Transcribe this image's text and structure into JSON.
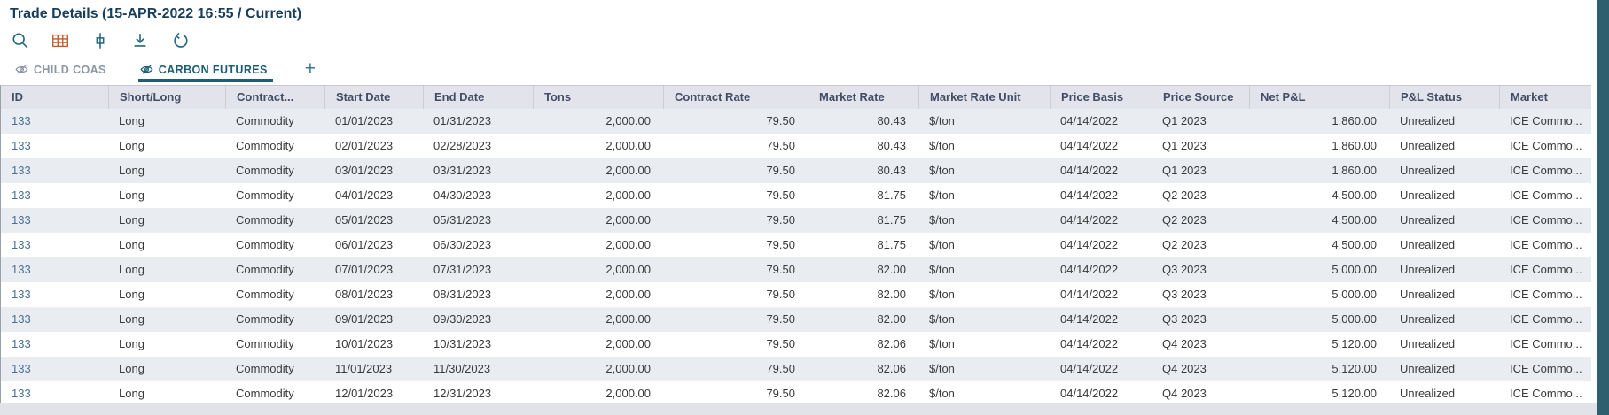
{
  "page": {
    "title": "Trade Details (15-APR-2022 16:55 / Current)"
  },
  "toolbar": {
    "buttons": [
      {
        "icon": "search-icon",
        "action": "search"
      },
      {
        "icon": "table-grid-icon",
        "action": "grid-view"
      },
      {
        "icon": "fit-columns-icon",
        "action": "fit-columns"
      },
      {
        "icon": "download-icon",
        "action": "download"
      },
      {
        "icon": "undo-icon",
        "action": "undo"
      }
    ]
  },
  "tabs": {
    "items": [
      {
        "label": "CHILD COAS",
        "icon": "eye-slash-icon",
        "active": false
      },
      {
        "label": "CARBON FUTURES",
        "icon": "eye-slash-icon",
        "active": true
      }
    ],
    "add_button": "+"
  },
  "table": {
    "columns": [
      "ID",
      "Short/Long",
      "Contract...",
      "Start Date",
      "End Date",
      "Tons",
      "Contract Rate",
      "Market Rate",
      "Market Rate Unit",
      "Price Basis",
      "Price Source",
      "Net P&L",
      "P&L Status",
      "Market"
    ],
    "rows": [
      [
        "133",
        "Long",
        "Commodity",
        "01/01/2023",
        "01/31/2023",
        "2,000.00",
        "79.50",
        "80.43",
        "$/ton",
        "04/14/2022",
        "Q1 2023",
        "1,860.00",
        "Unrealized",
        "ICE Commo..."
      ],
      [
        "133",
        "Long",
        "Commodity",
        "02/01/2023",
        "02/28/2023",
        "2,000.00",
        "79.50",
        "80.43",
        "$/ton",
        "04/14/2022",
        "Q1 2023",
        "1,860.00",
        "Unrealized",
        "ICE Commo..."
      ],
      [
        "133",
        "Long",
        "Commodity",
        "03/01/2023",
        "03/31/2023",
        "2,000.00",
        "79.50",
        "80.43",
        "$/ton",
        "04/14/2022",
        "Q1 2023",
        "1,860.00",
        "Unrealized",
        "ICE Commo..."
      ],
      [
        "133",
        "Long",
        "Commodity",
        "04/01/2023",
        "04/30/2023",
        "2,000.00",
        "79.50",
        "81.75",
        "$/ton",
        "04/14/2022",
        "Q2 2023",
        "4,500.00",
        "Unrealized",
        "ICE Commo..."
      ],
      [
        "133",
        "Long",
        "Commodity",
        "05/01/2023",
        "05/31/2023",
        "2,000.00",
        "79.50",
        "81.75",
        "$/ton",
        "04/14/2022",
        "Q2 2023",
        "4,500.00",
        "Unrealized",
        "ICE Commo..."
      ],
      [
        "133",
        "Long",
        "Commodity",
        "06/01/2023",
        "06/30/2023",
        "2,000.00",
        "79.50",
        "81.75",
        "$/ton",
        "04/14/2022",
        "Q2 2023",
        "4,500.00",
        "Unrealized",
        "ICE Commo..."
      ],
      [
        "133",
        "Long",
        "Commodity",
        "07/01/2023",
        "07/31/2023",
        "2,000.00",
        "79.50",
        "82.00",
        "$/ton",
        "04/14/2022",
        "Q3 2023",
        "5,000.00",
        "Unrealized",
        "ICE Commo..."
      ],
      [
        "133",
        "Long",
        "Commodity",
        "08/01/2023",
        "08/31/2023",
        "2,000.00",
        "79.50",
        "82.00",
        "$/ton",
        "04/14/2022",
        "Q3 2023",
        "5,000.00",
        "Unrealized",
        "ICE Commo..."
      ],
      [
        "133",
        "Long",
        "Commodity",
        "09/01/2023",
        "09/30/2023",
        "2,000.00",
        "79.50",
        "82.00",
        "$/ton",
        "04/14/2022",
        "Q3 2023",
        "5,000.00",
        "Unrealized",
        "ICE Commo..."
      ],
      [
        "133",
        "Long",
        "Commodity",
        "10/01/2023",
        "10/31/2023",
        "2,000.00",
        "79.50",
        "82.06",
        "$/ton",
        "04/14/2022",
        "Q4 2023",
        "5,120.00",
        "Unrealized",
        "ICE Commo..."
      ],
      [
        "133",
        "Long",
        "Commodity",
        "11/01/2023",
        "11/30/2023",
        "2,000.00",
        "79.50",
        "82.06",
        "$/ton",
        "04/14/2022",
        "Q4 2023",
        "5,120.00",
        "Unrealized",
        "ICE Commo..."
      ],
      [
        "133",
        "Long",
        "Commodity",
        "12/01/2023",
        "12/31/2023",
        "2,000.00",
        "79.50",
        "82.06",
        "$/ton",
        "04/14/2022",
        "Q4 2023",
        "5,120.00",
        "Unrealized",
        "ICE Commo..."
      ]
    ]
  },
  "colors": {
    "title_text": "#173e5c",
    "accent_teal": "#27697c",
    "grid_icon_orange": "#bf5c2d",
    "active_tab": "#1c5e74",
    "inactive_tab": "#8b97a4",
    "header_bg": "#e3e3eb",
    "header_text": "#414e66",
    "row_shaded_bg": "#e9edf2",
    "id_link_text": "#4a7095",
    "body_text": "#3a3a3a",
    "footer_bg": "#e2e2e9",
    "right_strip": "#2e5f6f"
  }
}
